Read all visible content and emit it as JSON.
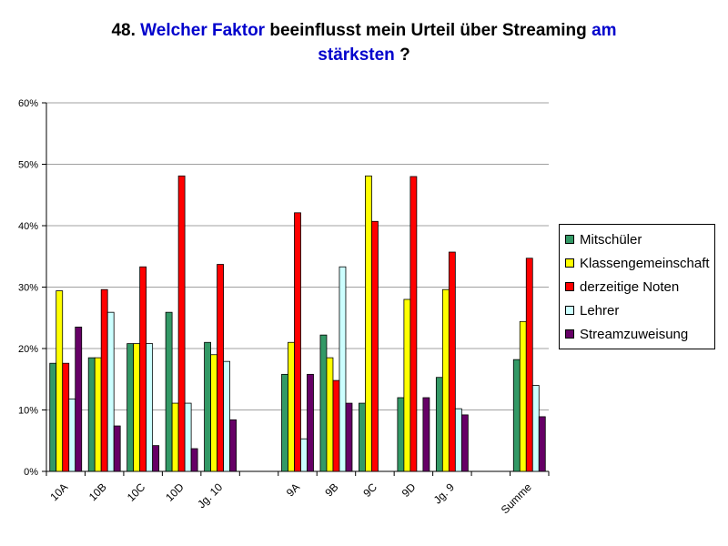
{
  "title": {
    "number": "48.",
    "highlight1": "Welcher Faktor",
    "middle": "beeinflusst mein Urteil über Streaming",
    "highlight2": "am",
    "highlight3": "stärksten",
    "end": "?"
  },
  "chart_data": {
    "type": "bar",
    "title": "48. Welcher Faktor beeinflusst mein Urteil über Streaming am stärksten ?",
    "categories": [
      "10A",
      "10B",
      "10C",
      "10D",
      "Jg. 10",
      "",
      "9A",
      "9B",
      "9C",
      "9D",
      "Jg. 9",
      "",
      "Summe"
    ],
    "ylim": [
      0,
      0.6
    ],
    "yticks": [
      "0%",
      "10%",
      "20%",
      "30%",
      "40%",
      "50%",
      "60%"
    ],
    "grid": true,
    "legend_position": "right",
    "series": [
      {
        "name": "Mitschüler",
        "color": "#339966",
        "values": [
          0.176,
          0.185,
          0.208,
          0.259,
          0.21,
          null,
          0.158,
          0.222,
          0.111,
          0.12,
          0.153,
          null,
          0.182
        ]
      },
      {
        "name": "Klassengemeinschaft",
        "color": "#ffff00",
        "values": [
          0.294,
          0.185,
          0.208,
          0.111,
          0.19,
          null,
          0.21,
          0.185,
          0.481,
          0.28,
          0.296,
          null,
          0.244
        ]
      },
      {
        "name": "derzeitige Noten",
        "color": "#ff0000",
        "values": [
          0.176,
          0.296,
          0.333,
          0.481,
          0.337,
          null,
          0.421,
          0.148,
          0.407,
          0.48,
          0.357,
          null,
          0.347
        ]
      },
      {
        "name": "Lehrer",
        "color": "#ccffff",
        "values": [
          0.118,
          0.259,
          0.208,
          0.111,
          0.179,
          null,
          0.053,
          0.333,
          0.0,
          0.0,
          0.102,
          null,
          0.14
        ]
      },
      {
        "name": "Streamzuweisung",
        "color": "#660066",
        "values": [
          0.235,
          0.074,
          0.042,
          0.037,
          0.084,
          null,
          0.158,
          0.111,
          0.0,
          0.12,
          0.092,
          null,
          0.089
        ]
      }
    ]
  }
}
